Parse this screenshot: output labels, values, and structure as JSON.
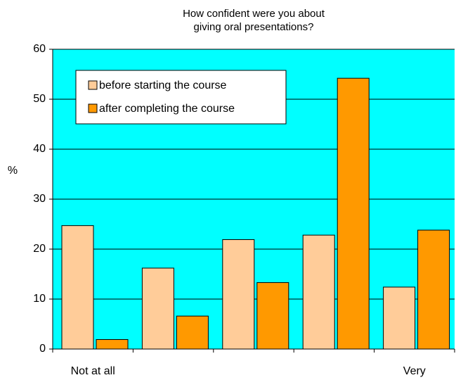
{
  "chart_data": {
    "type": "bar",
    "title": "How confident were you about\ngiving oral presentations?",
    "y_label": "%",
    "categories": [
      "Not at all",
      null,
      null,
      null,
      "Very"
    ],
    "series": [
      {
        "name": "before starting the course",
        "color": "#ffcc99",
        "values": [
          24.7,
          16.2,
          21.9,
          22.8,
          12.4
        ]
      },
      {
        "name": "after completing the course",
        "color": "#ff9900",
        "values": [
          1.9,
          6.6,
          13.3,
          54.2,
          23.8
        ]
      }
    ],
    "ylim": [
      0,
      60
    ],
    "yticks": [
      0,
      10,
      20,
      30,
      40,
      50,
      60
    ],
    "grid": true,
    "background": "#00ffff",
    "legend": "upper left"
  }
}
